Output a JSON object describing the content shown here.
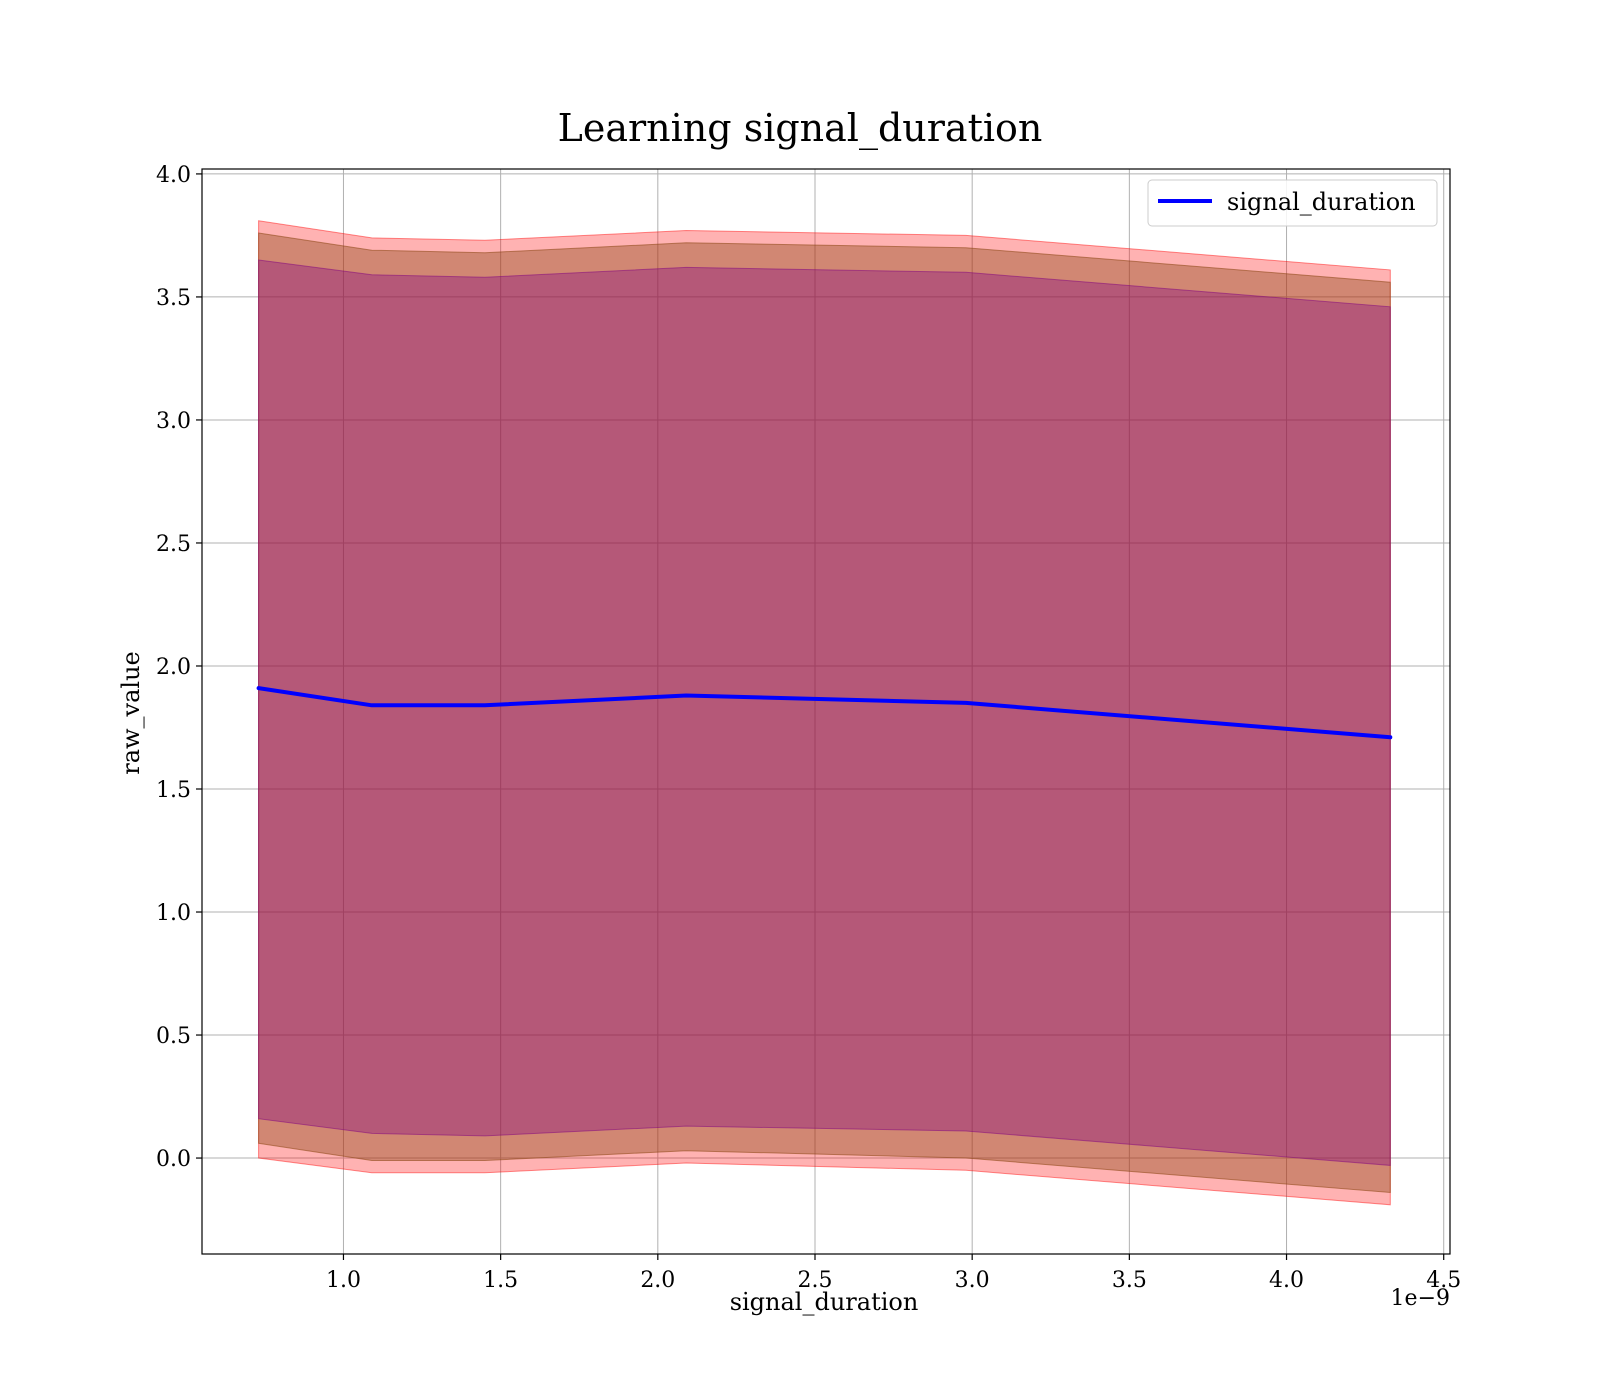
{
  "chart_data": {
    "type": "line",
    "title": "Learning signal_duration",
    "xlabel": "signal_duration",
    "ylabel": "raw_value",
    "x_offset_label": "1e−9",
    "xlim": [
      0.55,
      4.52
    ],
    "ylim": [
      -0.39,
      4.02
    ],
    "xticks": [
      1.0,
      1.5,
      2.0,
      2.5,
      3.0,
      3.5,
      4.0,
      4.5
    ],
    "xtick_labels": [
      "1.0",
      "1.5",
      "2.0",
      "2.5",
      "3.0",
      "3.5",
      "4.0",
      "4.5"
    ],
    "yticks": [
      0.0,
      0.5,
      1.0,
      1.5,
      2.0,
      2.5,
      3.0,
      3.5,
      4.0
    ],
    "ytick_labels": [
      "0.0",
      "0.5",
      "1.0",
      "1.5",
      "2.0",
      "2.5",
      "3.0",
      "3.5",
      "4.0"
    ],
    "grid": true,
    "legend_position": "top-right",
    "x": [
      0.73,
      1.09,
      1.45,
      2.09,
      2.98,
      4.33
    ],
    "series": [
      {
        "name": "signal_duration",
        "values": [
          1.91,
          1.84,
          1.84,
          1.88,
          1.85,
          1.71
        ],
        "color": "#0000ff"
      }
    ],
    "bands": [
      {
        "lower": [
          0.0,
          -0.06,
          -0.06,
          -0.02,
          -0.05,
          -0.19
        ],
        "upper": [
          3.81,
          3.74,
          3.73,
          3.77,
          3.75,
          3.61
        ],
        "fill": "#ff0000",
        "opacity": 0.3
      },
      {
        "lower": [
          0.06,
          -0.01,
          -0.01,
          0.03,
          0.0,
          -0.14
        ],
        "upper": [
          3.76,
          3.69,
          3.68,
          3.72,
          3.7,
          3.56
        ],
        "fill": "#8b4513",
        "opacity": 0.4
      },
      {
        "lower": [
          0.16,
          0.1,
          0.09,
          0.13,
          0.11,
          -0.03
        ],
        "upper": [
          3.65,
          3.59,
          3.58,
          3.62,
          3.6,
          3.46
        ],
        "fill": "#800080",
        "opacity": 0.35
      }
    ]
  }
}
